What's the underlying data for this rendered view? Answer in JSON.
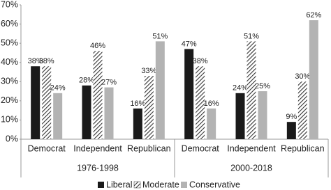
{
  "chart_data": {
    "type": "grouped-bar",
    "categories": [
      "Democrat",
      "Independent",
      "Republican",
      "Democrat",
      "Independent",
      "Republican"
    ],
    "category_groups": [
      "1976-1998",
      "2000-2018"
    ],
    "series": [
      {
        "name": "Liberal",
        "color": "#1a1a1a",
        "values": [
          38,
          28,
          16,
          47,
          24,
          9
        ],
        "value_labels": [
          "38%",
          "28%",
          "16%",
          "47%",
          "24%",
          "9%"
        ]
      },
      {
        "name": "Moderate",
        "color": "#333333",
        "hatch": true,
        "values": [
          38,
          46,
          33,
          38,
          51,
          30
        ],
        "value_labels": [
          "38%",
          "46%",
          "33%",
          "38%",
          "51%",
          "30%"
        ]
      },
      {
        "name": "Conservative",
        "color": "#b3b3b3",
        "values": [
          24,
          27,
          51,
          16,
          25,
          62
        ],
        "value_labels": [
          "24%",
          "27%",
          "51%",
          "16%",
          "25%",
          "62%"
        ]
      }
    ],
    "ylim": [
      0,
      70
    ],
    "yticks": [
      {
        "value": 0,
        "label": "0%"
      },
      {
        "value": 10,
        "label": "10%"
      },
      {
        "value": 20,
        "label": "20%"
      },
      {
        "value": 30,
        "label": "30%"
      },
      {
        "value": 40,
        "label": "40%"
      },
      {
        "value": 50,
        "label": "50%"
      },
      {
        "value": 60,
        "label": "60%"
      },
      {
        "value": 70,
        "label": "70%"
      }
    ],
    "legend": "bottom"
  }
}
